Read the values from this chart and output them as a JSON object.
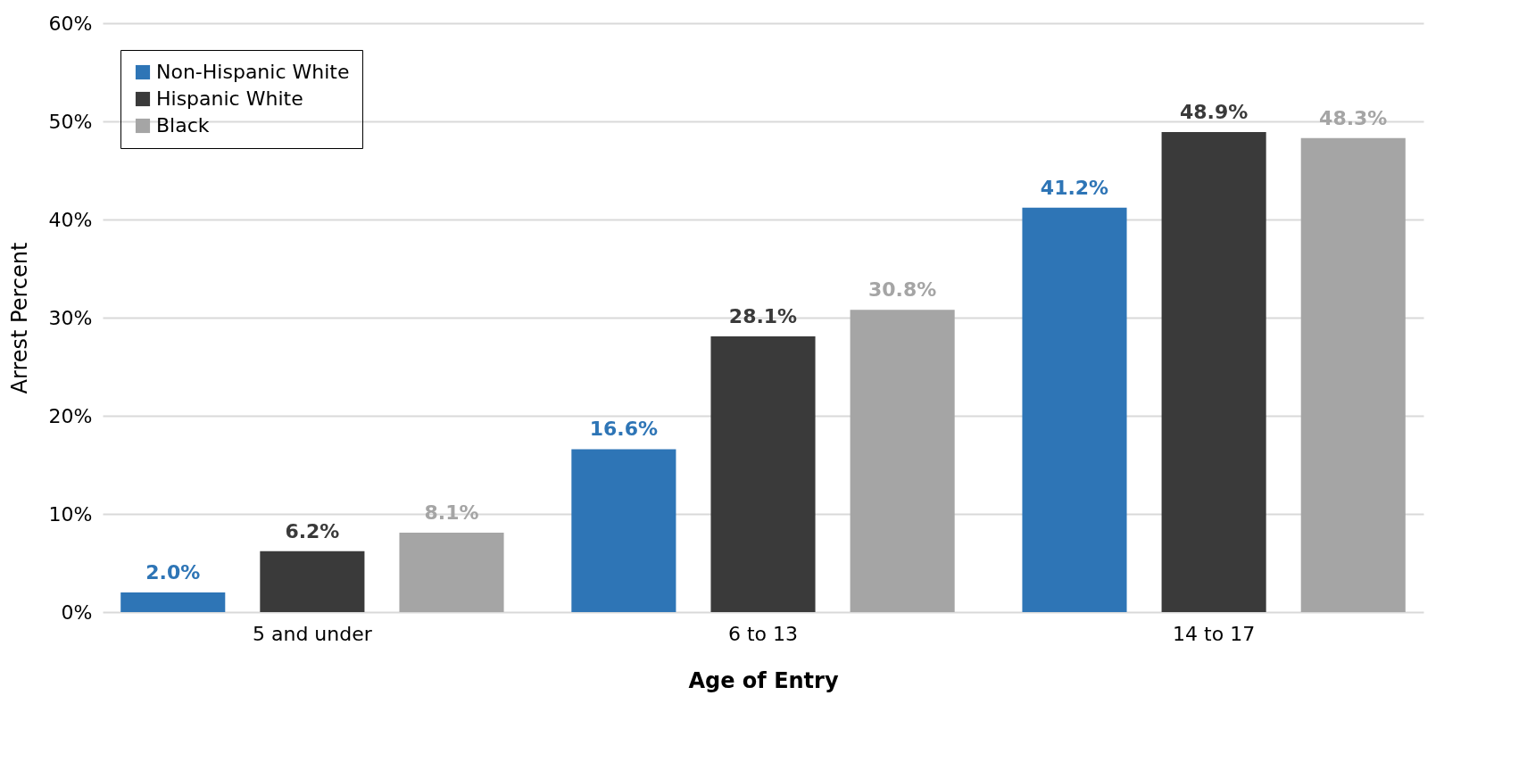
{
  "chart_data": {
    "type": "bar",
    "xlabel": "Age of Entry",
    "ylabel": "Arrest Percent",
    "categories": [
      "5 and under",
      "6 to 13",
      "14 to 17"
    ],
    "series": [
      {
        "name": "Non-Hispanic White",
        "color": "#2e75b6",
        "values": [
          2.0,
          16.6,
          41.2
        ],
        "value_labels": [
          "2.0%",
          "16.6%",
          "41.2%"
        ]
      },
      {
        "name": "Hispanic White",
        "color": "#3a3a3a",
        "values": [
          6.2,
          28.1,
          48.9
        ],
        "value_labels": [
          "6.2%",
          "28.1%",
          "48.9%"
        ]
      },
      {
        "name": "Black",
        "color": "#a5a5a5",
        "values": [
          8.1,
          30.8,
          48.3
        ],
        "value_labels": [
          "8.1%",
          "30.8%",
          "48.3%"
        ]
      }
    ],
    "ylim": [
      0,
      60
    ],
    "yticks": [
      {
        "value": 0,
        "label": "0%"
      },
      {
        "value": 10,
        "label": "10%"
      },
      {
        "value": 20,
        "label": "20%"
      },
      {
        "value": 30,
        "label": "30%"
      },
      {
        "value": 40,
        "label": "40%"
      },
      {
        "value": 50,
        "label": "50%"
      },
      {
        "value": 60,
        "label": "60%"
      }
    ],
    "grid": "y",
    "legend": "top left"
  }
}
